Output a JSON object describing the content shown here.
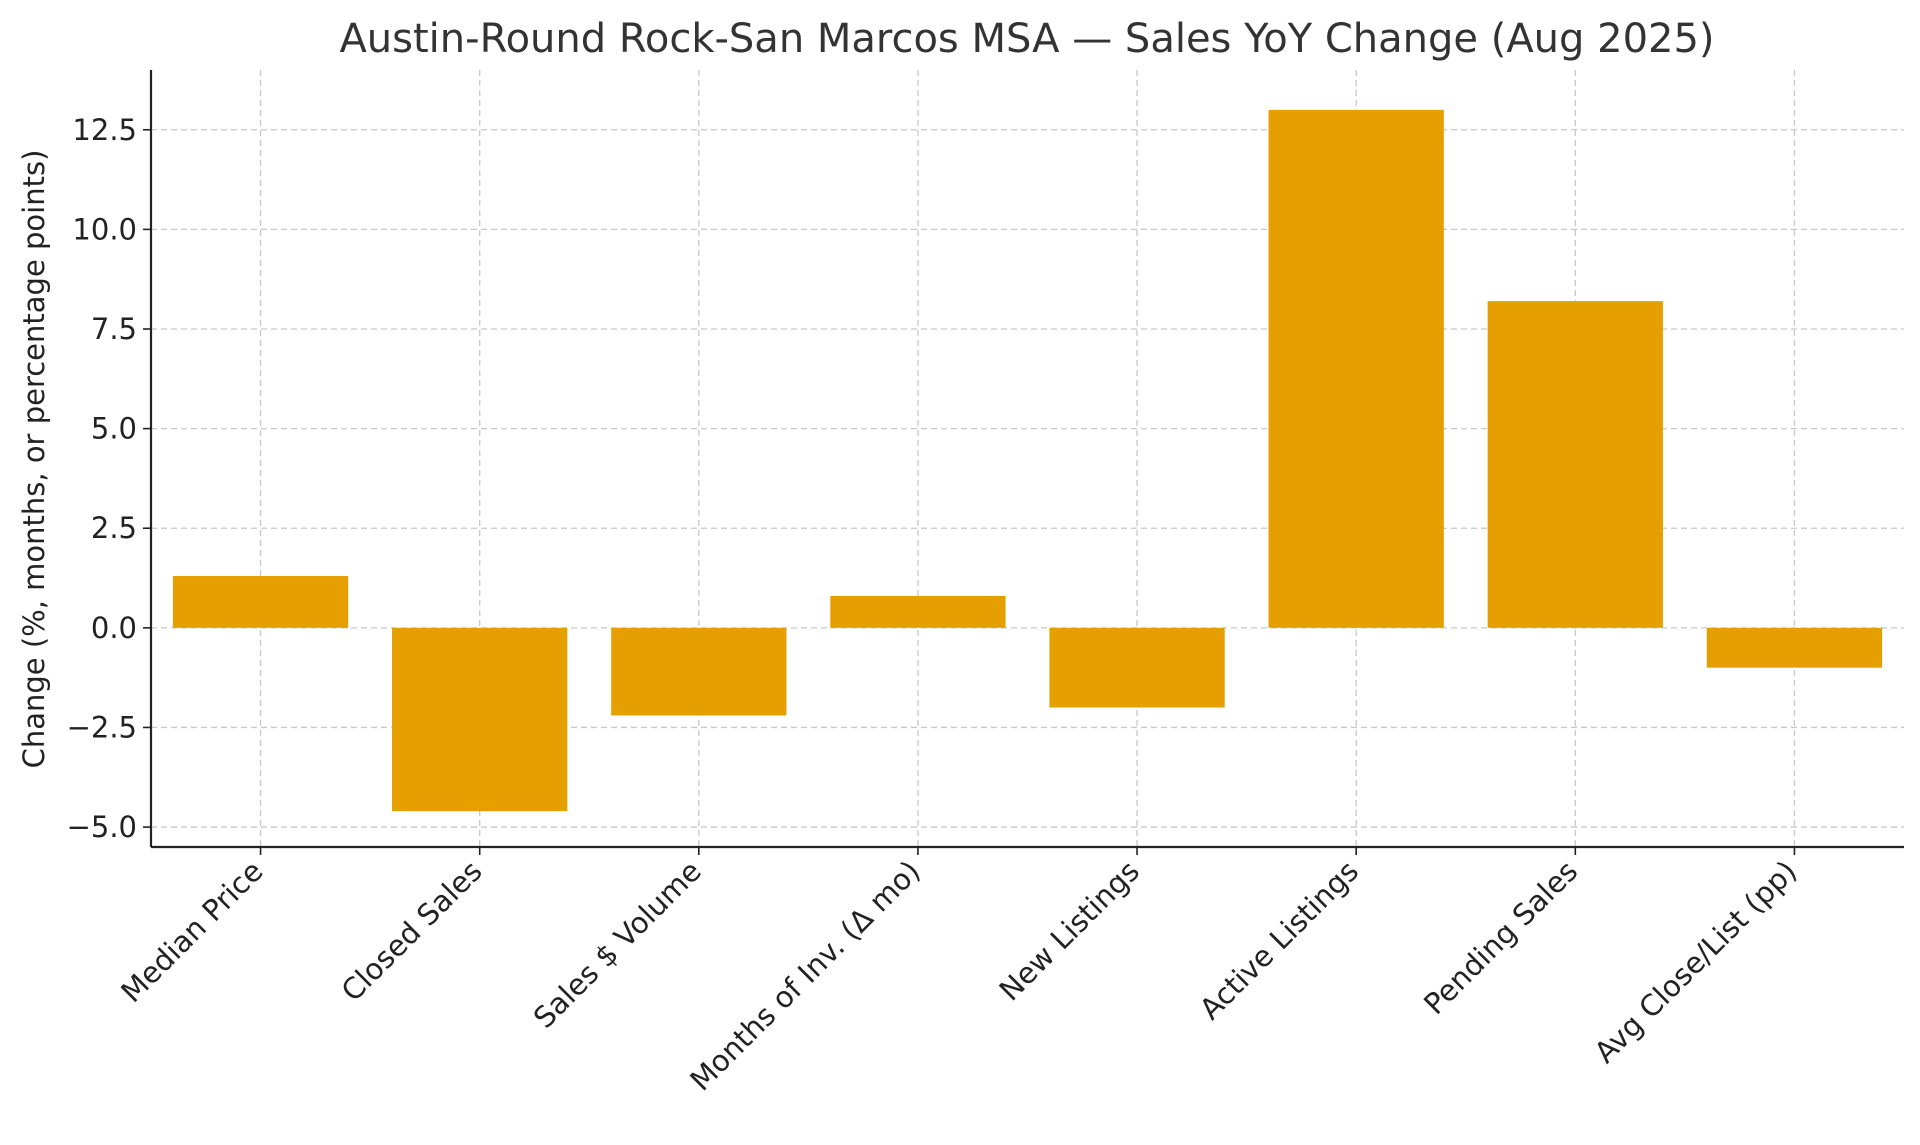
{
  "chart_data": {
    "type": "bar",
    "title": "Austin-Round Rock-San Marcos MSA — Sales YoY Change (Aug 2025)",
    "xlabel": "",
    "ylabel": "Change (%, months, or percentage points)",
    "categories": [
      "Median Price",
      "Closed Sales",
      "Sales $ Volume",
      "Months of Inv. (Δ mo)",
      "New Listings",
      "Active Listings",
      "Pending Sales",
      "Avg Close/List (pp)"
    ],
    "values": [
      1.3,
      -4.6,
      -2.2,
      0.8,
      -2.0,
      13.0,
      8.2,
      -1.0
    ],
    "ylim": [
      -5.5,
      14.0
    ],
    "yticks": [
      {
        "value": -5.0,
        "label": "−5.0"
      },
      {
        "value": -2.5,
        "label": "−2.5"
      },
      {
        "value": 0.0,
        "label": "0.0"
      },
      {
        "value": 2.5,
        "label": "2.5"
      },
      {
        "value": 5.0,
        "label": "5.0"
      },
      {
        "value": 7.5,
        "label": "7.5"
      },
      {
        "value": 10.0,
        "label": "10.0"
      },
      {
        "value": 12.5,
        "label": "12.5"
      }
    ],
    "grid": true,
    "bar_color": "#E69F00"
  }
}
